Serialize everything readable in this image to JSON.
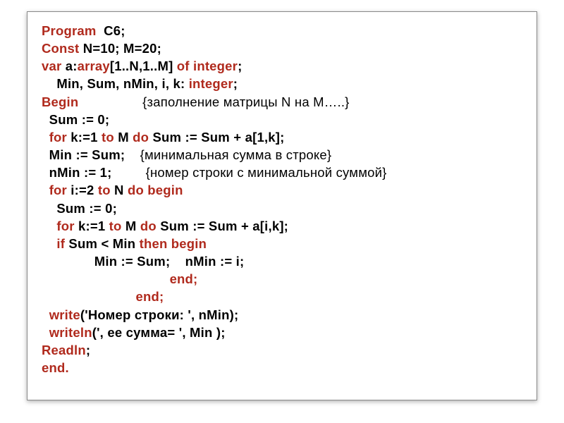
{
  "colors": {
    "keyword": "#b02a1d",
    "normal": "#000000",
    "background": "#ffffff",
    "page_bg": "#1a1a1a",
    "border": "#888888"
  },
  "typography": {
    "font_family": "Verdana",
    "font_size_pt": 14,
    "font_weight": "bold",
    "line_height": 1.36
  },
  "code": {
    "l01_kw": "Program",
    "l01_rest": "  C6;",
    "l02_kw": "Const",
    "l02_rest": " N=10; M=20;",
    "l03_kw": "var",
    "l03_rest1": " a:",
    "l03_kw2": "array",
    "l03_rest2": "[1..N,1..M] ",
    "l03_kw3": "of integer",
    "l03_rest3": ";",
    "l04": "    Min, Sum, nMin, i, k: ",
    "l04_kw": "integer",
    "l04_rest": ";",
    "l05_kw": "Begin",
    "l05_sp": "                 ",
    "l05_cm": "{заполнение матрицы N на M…..}",
    "l06": "  Sum := 0;",
    "l07a": "  ",
    "l07_kw1": "for",
    "l07b": " k:=1 ",
    "l07_kw2": "to",
    "l07c": " M ",
    "l07_kw3": "do",
    "l07d": " Sum := Sum + a[1,k];",
    "l08a": "  Min := Sum;    ",
    "l08_cm": "{минимальная сумма в строке}",
    "l09a": "  nMin := 1;         ",
    "l09_cm": "{номер строки с минимальной суммой}",
    "l10a": "  ",
    "l10_kw1": "for",
    "l10b": " i:=2 ",
    "l10_kw2": "to",
    "l10c": " N ",
    "l10_kw3": "do begin",
    "l11": "    Sum := 0;",
    "l12a": "    ",
    "l12_kw1": "for",
    "l12b": " k:=1 ",
    "l12_kw2": "to",
    "l12c": " M ",
    "l12_kw3": "do",
    "l12d": " Sum := Sum + a[i,k];",
    "l13a": "    ",
    "l13_kw1": "if",
    "l13b": " Sum < Min ",
    "l13_kw2": "then begin",
    "l14": "              Min := Sum;    nMin := i;",
    "l15a": "                                  ",
    "l15_kw": "end;",
    "l16a": "                         ",
    "l16_kw": "end;",
    "l17a": "  ",
    "l17_kw": "write",
    "l17b": "('Номер строки: ', nMin);",
    "l18a": "  ",
    "l18_kw": "writeln",
    "l18b": "(', ее сумма= ', Min );",
    "l19_kw": "Readln",
    "l19b": ";",
    "l20_kw": "end."
  }
}
